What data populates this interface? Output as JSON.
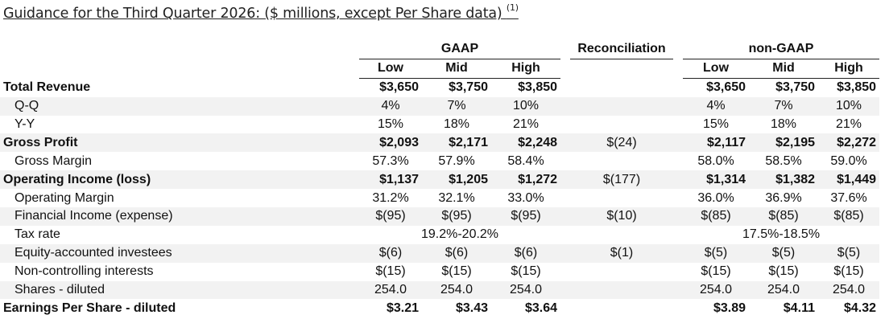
{
  "title": "Guidance for the Third Quarter 2026: ($ millions, except Per Share data)",
  "title_footnote": "(1)",
  "headers": {
    "gaap": "GAAP",
    "reconciliation": "Reconciliation",
    "non_gaap": "non-GAAP",
    "low": "Low",
    "mid": "Mid",
    "high": "High"
  },
  "rows": [
    {
      "label": "Total Revenue",
      "gaap_low": "$3,650",
      "gaap_mid": "$3,750",
      "gaap_high": "$3,850",
      "recon": "",
      "ng_low": "$3,650",
      "ng_mid": "$3,750",
      "ng_high": "$3,850"
    },
    {
      "label": "Q-Q",
      "gaap_low": "4%",
      "gaap_mid": "7%",
      "gaap_high": "10%",
      "recon": "",
      "ng_low": "4%",
      "ng_mid": "7%",
      "ng_high": "10%"
    },
    {
      "label": "Y-Y",
      "gaap_low": "15%",
      "gaap_mid": "18%",
      "gaap_high": "21%",
      "recon": "",
      "ng_low": "15%",
      "ng_mid": "18%",
      "ng_high": "21%"
    },
    {
      "label": "Gross Profit",
      "gaap_low": "$2,093",
      "gaap_mid": "$2,171",
      "gaap_high": "$2,248",
      "recon": "$(24)",
      "ng_low": "$2,117",
      "ng_mid": "$2,195",
      "ng_high": "$2,272"
    },
    {
      "label": "Gross Margin",
      "gaap_low": "57.3%",
      "gaap_mid": "57.9%",
      "gaap_high": "58.4%",
      "recon": "",
      "ng_low": "58.0%",
      "ng_mid": "58.5%",
      "ng_high": "59.0%"
    },
    {
      "label": "Operating Income (loss)",
      "gaap_low": "$1,137",
      "gaap_mid": "$1,205",
      "gaap_high": "$1,272",
      "recon": "$(177)",
      "ng_low": "$1,314",
      "ng_mid": "$1,382",
      "ng_high": "$1,449"
    },
    {
      "label": "Operating Margin",
      "gaap_low": "31.2%",
      "gaap_mid": "32.1%",
      "gaap_high": "33.0%",
      "recon": "",
      "ng_low": "36.0%",
      "ng_mid": "36.9%",
      "ng_high": "37.6%"
    },
    {
      "label": "Financial Income (expense)",
      "gaap_low": "$(95)",
      "gaap_mid": "$(95)",
      "gaap_high": "$(95)",
      "recon": "$(10)",
      "ng_low": "$(85)",
      "ng_mid": "$(85)",
      "ng_high": "$(85)"
    },
    {
      "label": "Tax rate",
      "gaap_span": "19.2%-20.2%",
      "ng_span": "17.5%-18.5%"
    },
    {
      "label": "Equity-accounted investees",
      "gaap_low": "$(6)",
      "gaap_mid": "$(6)",
      "gaap_high": "$(6)",
      "recon": "$(1)",
      "ng_low": "$(5)",
      "ng_mid": "$(5)",
      "ng_high": "$(5)"
    },
    {
      "label": "Non-controlling interests",
      "gaap_low": "$(15)",
      "gaap_mid": "$(15)",
      "gaap_high": "$(15)",
      "recon": "",
      "ng_low": "$(15)",
      "ng_mid": "$(15)",
      "ng_high": "$(15)"
    },
    {
      "label": "Shares - diluted",
      "gaap_low": "254.0",
      "gaap_mid": "254.0",
      "gaap_high": "254.0",
      "recon": "",
      "ng_low": "254.0",
      "ng_mid": "254.0",
      "ng_high": "254.0"
    },
    {
      "label": "Earnings Per Share - diluted",
      "gaap_low": "$3.21",
      "gaap_mid": "$3.43",
      "gaap_high": "$3.64",
      "recon": "",
      "ng_low": "$3.89",
      "ng_mid": "$4.11",
      "ng_high": "$4.32"
    }
  ]
}
